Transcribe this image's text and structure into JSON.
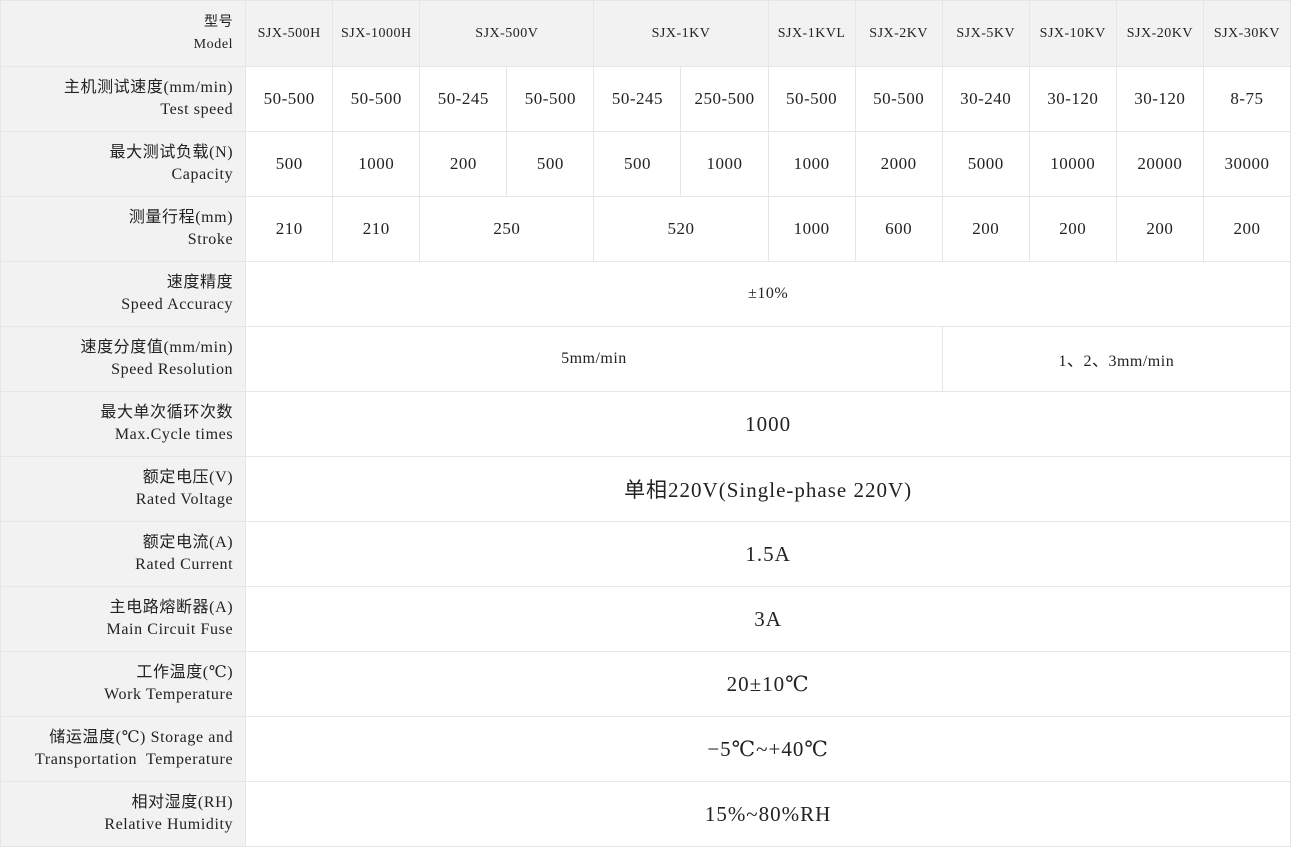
{
  "rows": [
    {
      "zh": "型号",
      "en": "Model",
      "head": true,
      "cells": [
        {
          "t": "SJX-500H",
          "s": 1
        },
        {
          "t": "SJX-1000H",
          "s": 1
        },
        {
          "t": "SJX-500V",
          "s": 2
        },
        {
          "t": "SJX-1KV",
          "s": 2
        },
        {
          "t": "SJX-1KVL",
          "s": 1
        },
        {
          "t": "SJX-2KV",
          "s": 1
        },
        {
          "t": "SJX-5KV",
          "s": 1
        },
        {
          "t": "SJX-10KV",
          "s": 1
        },
        {
          "t": "SJX-20KV",
          "s": 1
        },
        {
          "t": "SJX-30KV",
          "s": 1
        }
      ]
    },
    {
      "zh": "主机测试速度(mm/min)",
      "en": "Test speed",
      "cells": [
        {
          "t": "50-500",
          "s": 1
        },
        {
          "t": "50-500",
          "s": 1
        },
        {
          "t": "50-245",
          "s": 1
        },
        {
          "t": "50-500",
          "s": 1
        },
        {
          "t": "50-245",
          "s": 1
        },
        {
          "t": "250-500",
          "s": 1
        },
        {
          "t": "50-500",
          "s": 1
        },
        {
          "t": "50-500",
          "s": 1
        },
        {
          "t": "30-240",
          "s": 1
        },
        {
          "t": "30-120",
          "s": 1
        },
        {
          "t": "30-120",
          "s": 1
        },
        {
          "t": "8-75",
          "s": 1
        }
      ]
    },
    {
      "zh": "最大测试负载(N)",
      "en": "Capacity",
      "cells": [
        {
          "t": "500",
          "s": 1
        },
        {
          "t": "1000",
          "s": 1
        },
        {
          "t": "200",
          "s": 1
        },
        {
          "t": "500",
          "s": 1
        },
        {
          "t": "500",
          "s": 1
        },
        {
          "t": "1000",
          "s": 1
        },
        {
          "t": "1000",
          "s": 1
        },
        {
          "t": "2000",
          "s": 1
        },
        {
          "t": "5000",
          "s": 1
        },
        {
          "t": "10000",
          "s": 1
        },
        {
          "t": "20000",
          "s": 1
        },
        {
          "t": "30000",
          "s": 1
        }
      ]
    },
    {
      "zh": "测量行程(mm)",
      "en": "Stroke",
      "cells": [
        {
          "t": "210",
          "s": 1
        },
        {
          "t": "210",
          "s": 1
        },
        {
          "t": "250",
          "s": 2
        },
        {
          "t": "520",
          "s": 2
        },
        {
          "t": "1000",
          "s": 1
        },
        {
          "t": "600",
          "s": 1
        },
        {
          "t": "200",
          "s": 1
        },
        {
          "t": "200",
          "s": 1
        },
        {
          "t": "200",
          "s": 1
        },
        {
          "t": "200",
          "s": 1
        }
      ]
    },
    {
      "zh": "速度精度",
      "en": "Speed Accuracy",
      "size": "small",
      "cells": [
        {
          "t": "±10%",
          "s": 12
        }
      ]
    },
    {
      "zh": "速度分度值(mm/min)",
      "en": "Speed Resolution",
      "size": "small",
      "cells": [
        {
          "t": "5mm/min",
          "s": 8
        },
        {
          "t": "1、2、3mm/min",
          "s": 4
        }
      ]
    },
    {
      "zh": "最大单次循环次数",
      "en": "Max.Cycle times",
      "size": "big",
      "cells": [
        {
          "t": "1000",
          "s": 12
        }
      ]
    },
    {
      "zh": "额定电压(V)",
      "en": "Rated Voltage",
      "size": "big",
      "cells": [
        {
          "t": "单相220V(Single-phase 220V)",
          "s": 12
        }
      ]
    },
    {
      "zh": "额定电流(A)",
      "en": "Rated Current",
      "size": "big",
      "cells": [
        {
          "t": "1.5A",
          "s": 12
        }
      ]
    },
    {
      "zh": "主电路熔断器(A)",
      "en": "Main Circuit Fuse",
      "size": "big",
      "cells": [
        {
          "t": "3A",
          "s": 12
        }
      ]
    },
    {
      "zh": "工作温度(℃)",
      "en": "Work Temperature",
      "size": "big",
      "cells": [
        {
          "t": "20±10℃",
          "s": 12
        }
      ]
    },
    {
      "zh": "储运温度(℃) Storage and",
      "en": "Transportation  Temperature",
      "size": "big",
      "cells": [
        {
          "t": "−5℃~+40℃",
          "s": 12
        }
      ]
    },
    {
      "zh": "相对湿度(RH)",
      "en": "Relative Humidity",
      "size": "big",
      "cells": [
        {
          "t": "15%~80%RH",
          "s": 12
        }
      ]
    }
  ]
}
